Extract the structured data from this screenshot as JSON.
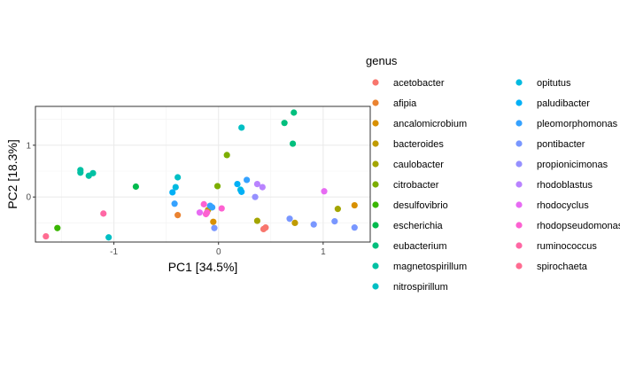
{
  "chart_data": {
    "type": "scatter",
    "xlabel": "PC1   [34.5%]",
    "ylabel": "PC2   [18.3%]",
    "xlim": [
      -1.75,
      1.45
    ],
    "ylim": [
      -0.87,
      1.75
    ],
    "x_ticks": [
      -1,
      0,
      1
    ],
    "x_tick_labels": [
      "-1",
      "0",
      "1"
    ],
    "y_ticks": [
      0,
      1
    ],
    "y_tick_labels": [
      "0",
      "1"
    ],
    "grid": true,
    "legend": {
      "title": "genus",
      "position": "right",
      "columns": 2
    },
    "series": [
      {
        "name": "acetobacter",
        "color": "#F8766D",
        "points": [
          [
            0.43,
            -0.62
          ],
          [
            0.45,
            -0.59
          ]
        ]
      },
      {
        "name": "afipia",
        "color": "#EA8331",
        "points": [
          [
            -0.39,
            -0.35
          ]
        ]
      },
      {
        "name": "ancalomicrobium",
        "color": "#D89000",
        "points": [
          [
            -0.05,
            -0.48
          ],
          [
            1.3,
            -0.16
          ]
        ]
      },
      {
        "name": "bacteroides",
        "color": "#C09B00",
        "points": [
          [
            -0.1,
            -0.25
          ],
          [
            0.73,
            -0.5
          ]
        ]
      },
      {
        "name": "caulobacter",
        "color": "#A3A500",
        "points": [
          [
            0.37,
            -0.46
          ],
          [
            1.14,
            -0.23
          ]
        ]
      },
      {
        "name": "citrobacter",
        "color": "#7CAE00",
        "points": [
          [
            0.08,
            0.81
          ],
          [
            -0.01,
            0.21
          ]
        ]
      },
      {
        "name": "desulfovibrio",
        "color": "#39B600",
        "points": [
          [
            -1.54,
            -0.6
          ]
        ]
      },
      {
        "name": "escherichia",
        "color": "#00BB4E",
        "points": [
          [
            -0.79,
            0.2
          ]
        ]
      },
      {
        "name": "eubacterium",
        "color": "#00BF7D",
        "points": [
          [
            0.72,
            1.63
          ],
          [
            0.63,
            1.43
          ],
          [
            0.71,
            1.03
          ]
        ]
      },
      {
        "name": "magnetospirillum",
        "color": "#00C1A3",
        "points": [
          [
            -1.32,
            0.52
          ],
          [
            -1.32,
            0.47
          ],
          [
            -1.24,
            0.41
          ],
          [
            -1.2,
            0.46
          ]
        ]
      },
      {
        "name": "nitrospirillum",
        "color": "#00BFC4",
        "points": [
          [
            0.22,
            1.34
          ],
          [
            -0.39,
            0.38
          ],
          [
            -1.05,
            -0.78
          ]
        ]
      },
      {
        "name": "opitutus",
        "color": "#00BAE0",
        "points": [
          [
            -0.41,
            0.19
          ],
          [
            0.21,
            0.14
          ]
        ]
      },
      {
        "name": "paludibacter",
        "color": "#00B0F6",
        "points": [
          [
            -0.44,
            0.09
          ],
          [
            0.18,
            0.25
          ],
          [
            0.22,
            0.1
          ]
        ]
      },
      {
        "name": "pleomorphomonas",
        "color": "#35A2FF",
        "points": [
          [
            -0.42,
            -0.13
          ],
          [
            -0.08,
            -0.17
          ],
          [
            -0.06,
            -0.2
          ],
          [
            0.27,
            0.33
          ]
        ]
      },
      {
        "name": "pontibacter",
        "color": "#7997FF",
        "points": [
          [
            -0.04,
            -0.6
          ],
          [
            0.68,
            -0.42
          ],
          [
            0.91,
            -0.53
          ],
          [
            1.11,
            -0.47
          ],
          [
            1.3,
            -0.59
          ]
        ]
      },
      {
        "name": "propionicimonas",
        "color": "#9590FF",
        "points": [
          [
            0.35,
            0.0
          ]
        ]
      },
      {
        "name": "rhodoblastus",
        "color": "#B983FF",
        "points": [
          [
            0.37,
            0.25
          ],
          [
            0.42,
            0.19
          ]
        ]
      },
      {
        "name": "rhodocyclus",
        "color": "#E76BF3",
        "points": [
          [
            1.01,
            0.11
          ],
          [
            -0.18,
            -0.3
          ]
        ]
      },
      {
        "name": "rhodopseudomonas",
        "color": "#FD61D1",
        "points": [
          [
            -0.14,
            -0.14
          ],
          [
            -0.11,
            -0.3
          ],
          [
            -0.12,
            -0.33
          ],
          [
            0.03,
            -0.22
          ]
        ]
      },
      {
        "name": "ruminococcus",
        "color": "#FF67A4",
        "points": [
          [
            -1.1,
            -0.32
          ]
        ]
      },
      {
        "name": "spirochaeta",
        "color": "#FF6C91",
        "points": [
          [
            -1.65,
            -0.76
          ]
        ]
      }
    ]
  }
}
